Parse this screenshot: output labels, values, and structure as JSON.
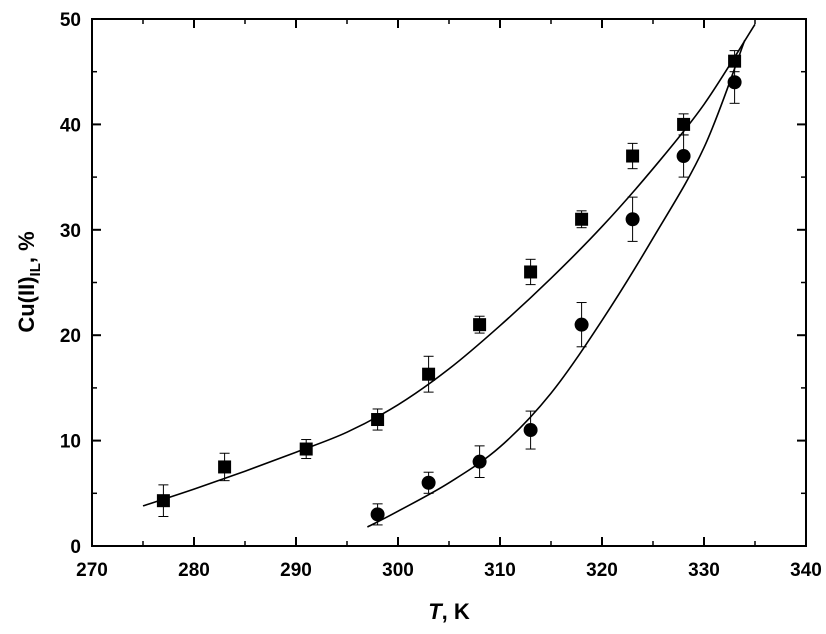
{
  "chart_data": {
    "type": "scatter",
    "title": "",
    "xlabel": {
      "symbol": "T",
      "rest": ", K"
    },
    "ylabel": {
      "base": "Cu(II)",
      "sub": "IL",
      "rest": ", %"
    },
    "xlim": [
      270,
      340
    ],
    "ylim": [
      0,
      50
    ],
    "x_ticks": [
      270,
      280,
      290,
      300,
      310,
      320,
      330,
      340
    ],
    "y_ticks": [
      0,
      10,
      20,
      30,
      40,
      50
    ],
    "grid": false,
    "legend": "none",
    "series": [
      {
        "marker": "square",
        "color": "#000000",
        "points": [
          {
            "x": 277,
            "y": 4.3,
            "err": 1.5
          },
          {
            "x": 283,
            "y": 7.5,
            "err": 1.3
          },
          {
            "x": 291,
            "y": 9.2,
            "err": 0.9
          },
          {
            "x": 298,
            "y": 12.0,
            "err": 1.0
          },
          {
            "x": 303,
            "y": 16.3,
            "err": 1.7
          },
          {
            "x": 308,
            "y": 21.0,
            "err": 0.8
          },
          {
            "x": 313,
            "y": 26.0,
            "err": 1.2
          },
          {
            "x": 318,
            "y": 31.0,
            "err": 0.8
          },
          {
            "x": 323,
            "y": 37.0,
            "err": 1.2
          },
          {
            "x": 328,
            "y": 40.0,
            "err": 1.0
          },
          {
            "x": 333,
            "y": 46.0,
            "err": 1.0
          }
        ],
        "fit": {
          "x": [
            275,
            280,
            285,
            290,
            295,
            300,
            305,
            310,
            315,
            320,
            325,
            330,
            335
          ],
          "y": [
            3.8,
            5.4,
            7.1,
            8.9,
            10.8,
            13.4,
            16.8,
            20.9,
            25.4,
            30.3,
            35.8,
            41.9,
            49.5
          ]
        }
      },
      {
        "marker": "circle",
        "color": "#000000",
        "points": [
          {
            "x": 298,
            "y": 3.0,
            "err": 1.0
          },
          {
            "x": 303,
            "y": 6.0,
            "err": 1.0
          },
          {
            "x": 308,
            "y": 8.0,
            "err": 1.5
          },
          {
            "x": 313,
            "y": 11.0,
            "err": 1.8
          },
          {
            "x": 318,
            "y": 21.0,
            "err": 2.1
          },
          {
            "x": 323,
            "y": 31.0,
            "err": 2.1
          },
          {
            "x": 328,
            "y": 37.0,
            "err": 2.0
          },
          {
            "x": 333,
            "y": 44.0,
            "err": 2.0
          }
        ],
        "fit": {
          "x": [
            297,
            300,
            305,
            310,
            315,
            320,
            325,
            330,
            334
          ],
          "y": [
            1.8,
            3.3,
            6.0,
            9.4,
            14.5,
            21.4,
            29.2,
            37.8,
            48.0
          ]
        }
      }
    ]
  }
}
